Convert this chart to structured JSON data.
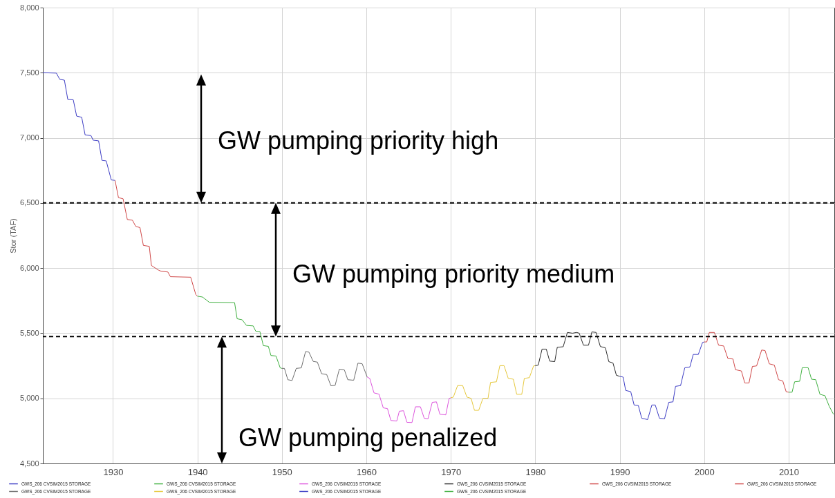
{
  "chart_data": {
    "type": "line",
    "ylabel": "Stor (TAF)",
    "xlim": [
      1921.7,
      2015.4
    ],
    "xticks": [
      1930,
      1940,
      1950,
      1960,
      1970,
      1980,
      1990,
      2000,
      2010
    ],
    "ylim": [
      4500,
      8000
    ],
    "yticks": [
      {
        "value": 4500,
        "label": "4,500"
      },
      {
        "value": 5000,
        "label": "5,000"
      },
      {
        "value": 5500,
        "label": "5,500"
      },
      {
        "value": 6000,
        "label": "6,000"
      },
      {
        "value": 6500,
        "label": "6,500"
      },
      {
        "value": 7000,
        "label": "7,000"
      },
      {
        "value": 7500,
        "label": "7,500"
      },
      {
        "value": 8000,
        "label": "8,000"
      }
    ],
    "grid": true,
    "legend": "bottom",
    "line_style": "solid",
    "ref_lines": [
      {
        "axis": "y",
        "value": 6500,
        "color": "#000000",
        "line_style": "dashed"
      },
      {
        "axis": "y",
        "value": 5475,
        "color": "#000000",
        "line_style": "dashed"
      }
    ],
    "annotations": [
      "GW pumping priority high",
      "GW pumping priority medium",
      "GW pumping penalized"
    ],
    "series": [
      {
        "name": "GWS_206 CVSIM2015 STORAGE",
        "color": "#3c3cc4",
        "x": [
          1921.7,
          1923.3,
          1923.7,
          1924.25,
          1924.65,
          1925.3,
          1925.7,
          1926.3,
          1926.7,
          1927.4,
          1927.65,
          1928.3,
          1928.7,
          1929.2,
          1929.8,
          1930.25
        ],
        "values": [
          7500,
          7497,
          7449,
          7443,
          7295,
          7292,
          7167,
          7158,
          7023,
          7017,
          6982,
          6977,
          6827,
          6823,
          6677,
          6673
        ]
      },
      {
        "name": "GWS_206 CVSIM2015 STORAGE",
        "color": "#d04848",
        "x": [
          1930.25,
          1930.65,
          1931.2,
          1931.7,
          1932.3,
          1932.7,
          1933.2,
          1933.6,
          1934.3,
          1934.55,
          1935.4,
          1935.7,
          1936.5,
          1936.8,
          1939.2,
          1939.8,
          1940.0
        ],
        "values": [
          6673,
          6541,
          6532,
          6373,
          6368,
          6320,
          6311,
          6174,
          6167,
          6020,
          5984,
          5976,
          5970,
          5934,
          5930,
          5798,
          5784
        ]
      },
      {
        "name": "GWS_206 CVSIM2015 STORAGE",
        "color": "#40b040",
        "x": [
          1940.0,
          1940.6,
          1941.4,
          1944.4,
          1944.7,
          1945.3,
          1945.8,
          1946.6,
          1946.9,
          1947.4,
          1947.8,
          1948.4,
          1948.7,
          1949.3,
          1949.8,
          1950.0
        ],
        "values": [
          5784,
          5778,
          5738,
          5734,
          5611,
          5603,
          5560,
          5556,
          5516,
          5512,
          5405,
          5399,
          5329,
          5325,
          5234,
          5230
        ]
      },
      {
        "name": "GWS_206 CVSIM2015 STORAGE",
        "color": "#6e6e6e",
        "x": [
          1950.0,
          1950.3,
          1950.7,
          1951.2,
          1951.7,
          1952.3,
          1952.8,
          1953.2,
          1953.7,
          1954.2,
          1954.7,
          1955.3,
          1955.8,
          1956.3,
          1956.8,
          1957.4,
          1957.8,
          1958.5,
          1959.0,
          1959.5,
          1960.1
        ],
        "values": [
          5230,
          5230,
          5143,
          5137,
          5230,
          5234,
          5359,
          5355,
          5284,
          5278,
          5189,
          5183,
          5097,
          5099,
          5224,
          5218,
          5143,
          5139,
          5270,
          5266,
          5163
        ]
      },
      {
        "name": "GWS_206 CVSIM2015 STORAGE",
        "color": "#dd55dd",
        "x": [
          1960.1,
          1960.4,
          1960.9,
          1961.5,
          1962.0,
          1962.5,
          1962.9,
          1963.6,
          1963.9,
          1964.4,
          1964.8,
          1965.4,
          1965.8,
          1966.4,
          1966.85,
          1967.3,
          1967.8,
          1968.3,
          1968.7,
          1969.4,
          1969.8,
          1970.0
        ],
        "values": [
          5163,
          5153,
          5042,
          5032,
          4927,
          4921,
          4830,
          4826,
          4901,
          4905,
          4816,
          4814,
          4935,
          4935,
          4847,
          4843,
          4969,
          4973,
          4878,
          4873,
          5000,
          5004
        ]
      },
      {
        "name": "GWS_206 CVSIM2015 STORAGE",
        "color": "#e6c83c",
        "x": [
          1970.0,
          1970.3,
          1970.8,
          1971.4,
          1971.9,
          1972.4,
          1972.8,
          1973.3,
          1973.8,
          1974.4,
          1974.7,
          1975.4,
          1975.8,
          1976.3,
          1976.8,
          1977.4,
          1977.8,
          1978.4,
          1978.7,
          1979.3,
          1979.8,
          1980.0
        ],
        "values": [
          5004,
          5010,
          5098,
          5098,
          5010,
          5000,
          4908,
          4908,
          5000,
          5000,
          5122,
          5127,
          5251,
          5251,
          5153,
          5147,
          5031,
          5031,
          5153,
          5159,
          5249,
          5251
        ]
      },
      {
        "name": "GWS_206 CVSIM2015 STORAGE",
        "color": "#2a2a2a",
        "x": [
          1980.0,
          1980.35,
          1980.8,
          1981.3,
          1981.7,
          1982.3,
          1982.6,
          1983.3,
          1983.8,
          1984.4,
          1984.9,
          1985.2,
          1985.7,
          1986.3,
          1986.7,
          1987.2,
          1987.7,
          1988.3,
          1988.7,
          1989.2,
          1989.6,
          1990.0
        ],
        "values": [
          5251,
          5255,
          5378,
          5378,
          5286,
          5282,
          5392,
          5396,
          5506,
          5500,
          5506,
          5500,
          5408,
          5408,
          5510,
          5506,
          5398,
          5388,
          5282,
          5271,
          5177,
          5169
        ]
      },
      {
        "name": "GWS_206 CVSIM2015 STORAGE",
        "color": "#3c3cc4",
        "x": [
          1990.0,
          1990.4,
          1990.7,
          1991.3,
          1991.7,
          1992.2,
          1992.6,
          1993.3,
          1993.8,
          1994.2,
          1994.7,
          1995.3,
          1995.8,
          1996.3,
          1996.6,
          1997.2,
          1997.7,
          1998.3,
          1998.7,
          1999.3,
          1999.8,
          2000.0
        ],
        "values": [
          5169,
          5163,
          5061,
          5051,
          4949,
          4945,
          4847,
          4837,
          4949,
          4949,
          4847,
          4843,
          4969,
          4973,
          5092,
          5098,
          5235,
          5241,
          5337,
          5337,
          5429,
          5433
        ]
      },
      {
        "name": "GWS_206 CVSIM2015 STORAGE",
        "color": "#d04848",
        "x": [
          2000.0,
          2000.3,
          2000.6,
          2001.2,
          2001.7,
          2002.3,
          2002.8,
          2003.4,
          2003.7,
          2004.4,
          2004.8,
          2005.3,
          2005.7,
          2006.2,
          2006.8,
          2007.2,
          2007.7,
          2008.3,
          2008.8,
          2009.3,
          2009.7,
          2010.0
        ],
        "values": [
          5433,
          5433,
          5506,
          5506,
          5408,
          5402,
          5306,
          5302,
          5220,
          5210,
          5118,
          5118,
          5245,
          5249,
          5371,
          5367,
          5265,
          5255,
          5143,
          5133,
          5051,
          5047
        ]
      },
      {
        "name": "GWS_206 CVSIM2015 STORAGE",
        "color": "#40b040",
        "x": [
          2010.0,
          2010.4,
          2010.7,
          2011.3,
          2011.6,
          2012.3,
          2012.7,
          2013.2,
          2013.7,
          2014.3,
          2014.8,
          2015.3
        ],
        "values": [
          5047,
          5047,
          5127,
          5131,
          5235,
          5235,
          5147,
          5143,
          5031,
          5020,
          4939,
          4878
        ]
      }
    ]
  }
}
